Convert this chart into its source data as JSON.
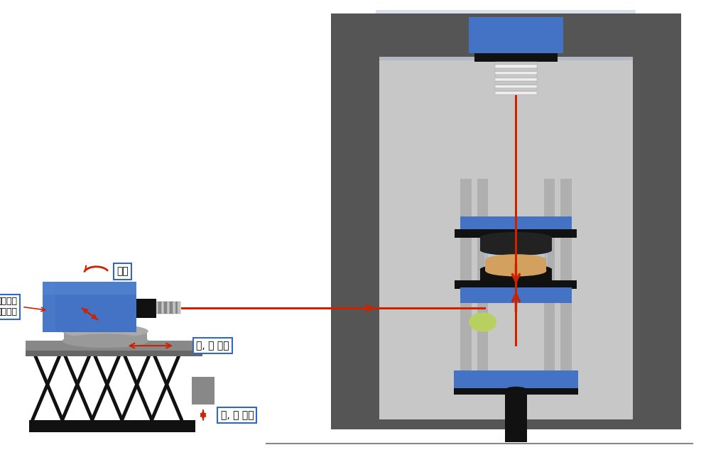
{
  "bg_color": "#ffffff",
  "blue_color": "#4472C4",
  "blue_light": "#5588d4",
  "black_color": "#111111",
  "dark_gray": "#555555",
  "med_gray": "#888888",
  "light_gray": "#c8c8c8",
  "rod_color": "#aaaaaa",
  "red_color": "#cc2200",
  "frame_inner_bg": "#aaaaaa",
  "glass_color": "#8899bb",
  "specimen_color": "#d4a060",
  "mirror_color": "#b8d060",
  "labels": {
    "rotation": "회전",
    "diagonal": "대각방향\n기울이기",
    "left_right": "좌, 우 이동",
    "up_down": "상, 하 이동"
  }
}
